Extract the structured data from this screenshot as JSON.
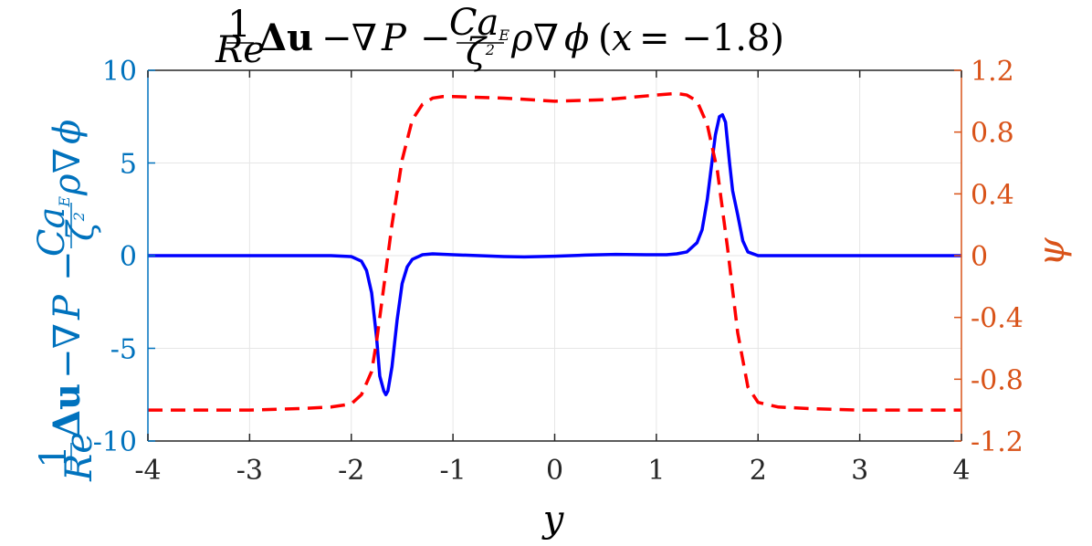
{
  "chart_data": {
    "type": "line",
    "title": "(1/Re)Δu − ∇P − (Ca_E/ζ²)ρ∇φ (x = −1.8)",
    "xlabel": "y",
    "ylabel_left": "(1/Re)Δu − ∇P − (Ca_E/ζ²)ρ∇φ",
    "ylabel_right": "ψ",
    "xlim": [
      -4,
      4
    ],
    "ylim_left": [
      -10,
      10
    ],
    "ylim_right": [
      -1.2,
      1.2
    ],
    "x_ticks": [
      "-4",
      "-3",
      "-2",
      "-1",
      "0",
      "1",
      "2",
      "3",
      "4"
    ],
    "y_left_ticks": [
      "10",
      "5",
      "0",
      "-5",
      "-10"
    ],
    "y_right_ticks": [
      "1.2",
      "0.8",
      "0.4",
      "0",
      "-0.4",
      "-0.8",
      "-1.2"
    ],
    "grid": true,
    "colors": {
      "left_axis": "#0072BD",
      "right_axis": "#D95319",
      "left_series": "#0000FF",
      "right_series": "#FF0000"
    },
    "series": [
      {
        "axis": "left",
        "style": "solid",
        "x": [
          -4,
          -3,
          -2.5,
          -2.2,
          -2.0,
          -1.9,
          -1.85,
          -1.8,
          -1.75,
          -1.72,
          -1.68,
          -1.66,
          -1.64,
          -1.6,
          -1.55,
          -1.5,
          -1.45,
          -1.4,
          -1.3,
          -1.2,
          -1.0,
          -0.5,
          -0.3,
          0,
          0.3,
          0.6,
          0.9,
          1.1,
          1.2,
          1.3,
          1.4,
          1.45,
          1.5,
          1.55,
          1.58,
          1.62,
          1.65,
          1.68,
          1.72,
          1.75,
          1.8,
          1.85,
          1.9,
          2.0,
          2.5,
          3,
          4
        ],
        "y": [
          0,
          0,
          0,
          0,
          -0.05,
          -0.3,
          -0.8,
          -2.0,
          -4.5,
          -6.5,
          -7.3,
          -7.5,
          -7.3,
          -6.0,
          -3.5,
          -1.5,
          -0.6,
          -0.2,
          0.05,
          0.1,
          0.05,
          -0.05,
          -0.07,
          -0.03,
          0.03,
          0.07,
          0.05,
          0.05,
          0.1,
          0.2,
          0.7,
          1.4,
          3.0,
          5.2,
          6.5,
          7.5,
          7.6,
          7.2,
          5.0,
          3.5,
          2.2,
          0.8,
          0.2,
          0,
          0,
          0,
          0
        ]
      },
      {
        "axis": "right",
        "style": "dashed",
        "x": [
          -4,
          -3,
          -2.5,
          -2.2,
          -2.0,
          -1.9,
          -1.8,
          -1.75,
          -1.7,
          -1.6,
          -1.5,
          -1.4,
          -1.3,
          -1.2,
          -1.1,
          -1.0,
          -0.5,
          0,
          0.5,
          1.0,
          1.2,
          1.3,
          1.4,
          1.5,
          1.6,
          1.7,
          1.8,
          1.9,
          2.0,
          2.2,
          2.5,
          3,
          4
        ],
        "y": [
          -1.0,
          -1.0,
          -0.99,
          -0.98,
          -0.96,
          -0.9,
          -0.75,
          -0.55,
          -0.3,
          0.2,
          0.62,
          0.88,
          0.98,
          1.02,
          1.03,
          1.03,
          1.02,
          1.0,
          1.01,
          1.04,
          1.05,
          1.04,
          1.0,
          0.85,
          0.55,
          0.05,
          -0.5,
          -0.85,
          -0.95,
          -0.98,
          -0.99,
          -1.0,
          -1.0
        ]
      }
    ]
  }
}
